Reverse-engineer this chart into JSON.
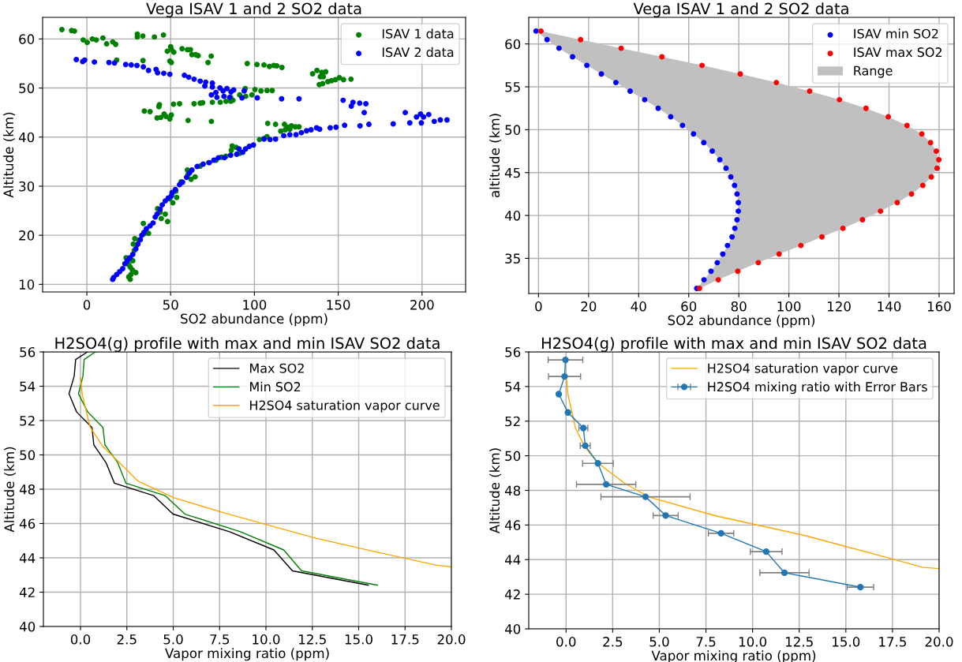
{
  "chart_data": [
    {
      "type": "scatter",
      "title": "Vega ISAV 1 and 2 SO2 data",
      "xlabel": "SO2 abundance (ppm)",
      "ylabel": "Altitude (km)",
      "xlim": [
        -26.4,
        226
      ],
      "ylim": [
        8.45,
        64.4
      ],
      "xticks": [
        0,
        50,
        100,
        150,
        200
      ],
      "yticks": [
        10,
        20,
        30,
        40,
        50,
        60
      ],
      "grid": true,
      "legend": "top right",
      "marker": "circle",
      "series": [
        {
          "name": "ISAV 1 data",
          "color": "#008000",
          "x": [
            -14.9,
            -9.1,
            -7.4,
            -2.2,
            0.2,
            3.3,
            5.6,
            9.6,
            11.8,
            15.4,
            17.2,
            17.8,
            30.1,
            30.1,
            33.4,
            40.3,
            45.7,
            33.5,
            50,
            50.4,
            48,
            51.9,
            56.8,
            60,
            61.8,
            62.7,
            64.9,
            66.4,
            74.2,
            72.3,
            49.5,
            50.4,
            95.7,
            101.5,
            105.7,
            108.9,
            111.5,
            113.3,
            116.4,
            134.7,
            137.3,
            140.2,
            142.5,
            139.3,
            141.1,
            138.7,
            140.7,
            143.8,
            146,
            148.3,
            150.7,
            153.2,
            157.6,
            94.5,
            100.3,
            103.9,
            107.5,
            110.6,
            91.2,
            98.5,
            94.8,
            85.8,
            87.2,
            83,
            79.6,
            85.8,
            74.9,
            69.1,
            67.6,
            64,
            55.3,
            51.7,
            43.3,
            43,
            34.3,
            37.7,
            41.9,
            44.1,
            46.1,
            47.3,
            50.4,
            49.5,
            60.4,
            74.3,
            107.9,
            112.6,
            117.9,
            119.9,
            122.1,
            124.4,
            126.6,
            115.7,
            118.4,
            121.1,
            107.5,
            103,
            105.7,
            86.7,
            89,
            86.2,
            91.2,
            83,
            80.3,
            77.1,
            72.7,
            67.6,
            60,
            60.4,
            64.6,
            62.2,
            56.2,
            53.1,
            50.9,
            53.6,
            49.5,
            51.3,
            42.2,
            43.7,
            46.8,
            44.4,
            48.2,
            33.7,
            36.8,
            34.1,
            28.6,
            31,
            27.7,
            29.9,
            28.3,
            23.4,
            26.3,
            27.4,
            25,
            25.9,
            27.2,
            29.2,
            26.3,
            25,
            25.9
          ],
          "values": [
            61.9,
            61.7,
            61.6,
            59.8,
            59.3,
            60,
            59.8,
            60.2,
            59,
            59.4,
            58.9,
            55.7,
            61,
            60.4,
            60.6,
            60.4,
            60.8,
            55.6,
            58.4,
            57.9,
            57.5,
            57.3,
            58,
            57.8,
            57.8,
            56.8,
            56.8,
            56.6,
            56.5,
            55.2,
            55.5,
            55.2,
            55,
            54.8,
            54.7,
            54.4,
            54.6,
            54.5,
            54.2,
            52.9,
            53.6,
            53.2,
            53.3,
            52.3,
            52.3,
            50.7,
            50.9,
            51.3,
            51.5,
            51.7,
            52.1,
            51.7,
            51.8,
            49.9,
            49.7,
            49.4,
            49.5,
            49.5,
            48.6,
            48.6,
            48.3,
            48.1,
            47.5,
            47.3,
            47.1,
            47.3,
            47.1,
            47,
            46.9,
            46.8,
            46.8,
            46.7,
            46.6,
            46.2,
            45.3,
            45.2,
            43.9,
            44,
            44.7,
            44.2,
            44.5,
            43.7,
            43.4,
            43.2,
            42.8,
            42.6,
            42.6,
            42,
            42.3,
            42.1,
            42.1,
            41.2,
            41.5,
            41.6,
            40.1,
            39.5,
            39.7,
            38.2,
            37.9,
            37.3,
            36.7,
            36.1,
            35.9,
            35.3,
            34.8,
            34.1,
            33.3,
            32.4,
            31.9,
            31.4,
            30.9,
            29,
            28.5,
            27.7,
            27.4,
            26.6,
            25.4,
            24.7,
            24.3,
            23.4,
            22.8,
            22.4,
            20.4,
            20.3,
            19.3,
            19,
            18.2,
            18,
            16.9,
            15.4,
            15.1,
            14.8,
            14,
            13.5,
            12.9,
            12.4,
            12,
            11.5,
            11
          ]
        },
        {
          "name": "ISAV 2 data",
          "color": "#0000ff",
          "x": [
            -6.3,
            -2.5,
            -1.3,
            4.5,
            13.2,
            16.5,
            23.2,
            26.5,
            29.9,
            33.7,
            36.8,
            41.3,
            42.2,
            45.9,
            49.5,
            58.2,
            60.8,
            64,
            67.6,
            70.9,
            74.9,
            70.4,
            74.9,
            79.4,
            83.6,
            87.6,
            93.9,
            77,
            81.3,
            86,
            74.3,
            77.6,
            81.8,
            85.2,
            92.6,
            101.7,
            116.2,
            126.6,
            152.9,
            158.8,
            157.8,
            162.8,
            166.5,
            165.5,
            190,
            196.7,
            199.1,
            200.9,
            204,
            199.6,
            192.7,
            207.3,
            210.9,
            214.9,
            182.8,
            168.3,
            163,
            153.8,
            148.7,
            145.2,
            138.9,
            137.1,
            133.8,
            131.1,
            128,
            124.8,
            121.1,
            117.5,
            112.6,
            109.3,
            105.7,
            99.4,
            96.9,
            94.7,
            90.8,
            93,
            89.4,
            85.8,
            82.1,
            78.5,
            75.8,
            73.1,
            69.4,
            65.8,
            62.7,
            61.3,
            59.5,
            57.1,
            55.3,
            52.8,
            50.9,
            50.4,
            48.6,
            46.8,
            45,
            43.7,
            41.9,
            40.8,
            39.5,
            37.7,
            35.5,
            34.1,
            32.8,
            31.9,
            30.5,
            29.2,
            27.4,
            25.6,
            24.1,
            22.7,
            21.4,
            19.6,
            17.8,
            16,
            15.4
          ],
          "values": [
            55.8,
            55.4,
            55.7,
            55.3,
            55.2,
            55.1,
            54.8,
            54.7,
            54.6,
            54.3,
            53.6,
            53.8,
            53.1,
            53,
            52.8,
            52.6,
            52.2,
            51.8,
            51.4,
            51.2,
            51,
            50.4,
            50.2,
            50,
            49.9,
            49.6,
            49.4,
            49.1,
            49.4,
            49.2,
            48.6,
            48.1,
            48.3,
            48.1,
            48,
            48,
            47.8,
            47.8,
            47.5,
            47.1,
            46.3,
            46.9,
            46.8,
            45,
            45,
            44.1,
            44.7,
            44.1,
            44.6,
            42.9,
            42.9,
            43.2,
            43.5,
            43.5,
            42.7,
            42.6,
            42.3,
            42.4,
            42,
            41.9,
            41.6,
            41.9,
            41.5,
            41.3,
            40.9,
            40.5,
            40.5,
            40.3,
            39.6,
            39.5,
            39.6,
            38.4,
            38.1,
            37.6,
            37.6,
            36.9,
            36.5,
            36.3,
            35.8,
            35.8,
            35.3,
            34.8,
            34.5,
            34,
            33.3,
            32.7,
            31.8,
            30.8,
            30.3,
            29.3,
            28.7,
            28,
            27.6,
            27,
            26.2,
            25.3,
            24.3,
            23.7,
            22.5,
            21.9,
            21.3,
            20.6,
            20,
            19.1,
            18.2,
            17.2,
            16.1,
            15.4,
            14.8,
            14.2,
            13.2,
            12.6,
            12,
            11.4,
            11
          ]
        }
      ]
    },
    {
      "type": "scatter",
      "orientation": "horizontal",
      "title": "Vega ISAV 1 and 2 SO2 data",
      "xlabel": "SO2 abundance (ppm)",
      "ylabel": "altitude (km)",
      "xlim": [
        -3.9,
        166
      ],
      "ylim": [
        30.9,
        63.1
      ],
      "xticks": [
        0,
        20,
        40,
        60,
        80,
        100,
        120,
        140,
        160
      ],
      "yticks": [
        35,
        40,
        45,
        50,
        55,
        60
      ],
      "grid": true,
      "legend": "top right",
      "marker": "circle",
      "series": [
        {
          "name": "Range",
          "type": "area",
          "marker": "none",
          "color": "#c0c0c0",
          "values": [
            null,
            null,
            null,
            null,
            null,
            null,
            null,
            null,
            null,
            null,
            null,
            null,
            null,
            null,
            null,
            null,
            null,
            null,
            null,
            null,
            null,
            null,
            null,
            null,
            null,
            null,
            null,
            null,
            null,
            null,
            null
          ],
          "x": [
            61.5,
            60.5,
            59.5,
            58.5,
            57.5,
            56.5,
            55.5,
            54.5,
            53.5,
            52.5,
            51.5,
            50.5,
            49.5,
            48.5,
            47.5,
            46.5,
            45.5,
            44.5,
            43.5,
            42.5,
            41.5,
            40.5,
            39.5,
            38.5,
            37.5,
            36.5,
            35.5,
            34.5,
            33.5,
            32.5,
            31.5
          ],
          "lower": [
            -1,
            3.4,
            8.2,
            13.6,
            19.3,
            25.1,
            30.9,
            36.6,
            42.4,
            47.8,
            52.8,
            57.5,
            61.9,
            66,
            69.4,
            72.4,
            74.9,
            76.8,
            78.3,
            79.3,
            79.8,
            79.8,
            79.3,
            78.4,
            77.3,
            75.5,
            73.6,
            71.4,
            68.9,
            66.1,
            63.2
          ],
          "upper": [
            1,
            16.8,
            33,
            49.3,
            65.3,
            80.6,
            95,
            108.3,
            120.2,
            130.8,
            139.7,
            147.2,
            153.1,
            156.6,
            158.9,
            159.9,
            159.2,
            156.9,
            153.5,
            149,
            143.3,
            136.6,
            129.4,
            121.6,
            113.2,
            104.8,
            96.1,
            87.8,
            79.6,
            71.8,
            64.3
          ]
        },
        {
          "name": "ISAV min SO2",
          "color": "#0000ff",
          "values": [
            -1,
            3.4,
            8.2,
            13.6,
            19.3,
            25.1,
            30.9,
            36.6,
            42.4,
            47.8,
            52.8,
            57.5,
            61.9,
            66,
            69.4,
            72.4,
            74.9,
            76.8,
            78.3,
            79.3,
            79.8,
            79.8,
            79.3,
            78.4,
            77.3,
            75.5,
            73.6,
            71.4,
            68.9,
            66.1,
            63.2
          ],
          "x": [
            61.5,
            60.5,
            59.5,
            58.5,
            57.5,
            56.5,
            55.5,
            54.5,
            53.5,
            52.5,
            51.5,
            50.5,
            49.5,
            48.5,
            47.5,
            46.5,
            45.5,
            44.5,
            43.5,
            42.5,
            41.5,
            40.5,
            39.5,
            38.5,
            37.5,
            36.5,
            35.5,
            34.5,
            33.5,
            32.5,
            31.5
          ]
        },
        {
          "name": "ISAV max SO2",
          "color": "#ff0000",
          "values": [
            1,
            16.8,
            33,
            49.3,
            65.3,
            80.6,
            95,
            108.3,
            120.2,
            130.8,
            139.7,
            147.2,
            153.1,
            156.6,
            158.9,
            159.9,
            159.2,
            156.9,
            153.5,
            149,
            143.3,
            136.6,
            129.4,
            121.6,
            113.2,
            104.8,
            96.1,
            87.8,
            79.6,
            71.8,
            64.3
          ],
          "x": [
            61.5,
            60.5,
            59.5,
            58.5,
            57.5,
            56.5,
            55.5,
            54.5,
            53.5,
            52.5,
            51.5,
            50.5,
            49.5,
            48.5,
            47.5,
            46.5,
            45.5,
            44.5,
            43.5,
            42.5,
            41.5,
            40.5,
            39.5,
            38.5,
            37.5,
            36.5,
            35.5,
            34.5,
            33.5,
            32.5,
            31.5
          ]
        }
      ]
    },
    {
      "type": "line",
      "title": "H2SO4(g) profile with max and min ISAV SO2 data",
      "xlabel": "Vapor mixing ratio (ppm)",
      "ylabel": "Altitude (km)",
      "xlim": [
        -2,
        20
      ],
      "ylim": [
        40,
        56
      ],
      "xticks": [
        {
          "value": 0,
          "label": "0.0"
        },
        {
          "value": 2.5,
          "label": "2.5"
        },
        {
          "value": 5,
          "label": "5.0"
        },
        {
          "value": 7.5,
          "label": "7.5"
        },
        {
          "value": 10,
          "label": "10.0"
        },
        {
          "value": 12.5,
          "label": "12.5"
        },
        {
          "value": 15,
          "label": "15.0"
        },
        {
          "value": 17.5,
          "label": "17.5"
        },
        {
          "value": 20,
          "label": "20.0"
        }
      ],
      "yticks": [
        40,
        42,
        44,
        46,
        48,
        50,
        52,
        54,
        56
      ],
      "grid": true,
      "legend": "top right",
      "series": [
        {
          "name": "Max SO2",
          "color": "#000000",
          "x": [
            0.38,
            -0.26,
            -0.34,
            -0.62,
            -0.21,
            0.62,
            0.72,
            1.37,
            1.83,
            3.94,
            4.99,
            8.03,
            10.43,
            11.43,
            15.52
          ],
          "values": [
            56,
            55.56,
            54.58,
            53.56,
            52.5,
            51.6,
            50.58,
            49.56,
            48.35,
            47.63,
            46.55,
            45.52,
            44.46,
            43.24,
            42.41
          ]
        },
        {
          "name": "Min SO2",
          "color": "#008000",
          "x": [
            0.8,
            0.2,
            0.13,
            -0.11,
            0.39,
            1.21,
            1.32,
            2.0,
            2.45,
            4.56,
            5.63,
            8.62,
            10.96,
            11.92,
            16.01
          ],
          "values": [
            56,
            55.56,
            54.58,
            53.56,
            52.5,
            51.6,
            50.58,
            49.56,
            48.35,
            47.63,
            46.55,
            45.52,
            44.46,
            43.24,
            42.41
          ]
        },
        {
          "name": "H2SO4 saturation vapor curve",
          "color": "#ffa500",
          "x": [
            0,
            0.1,
            0.52,
            1.21,
            2.22,
            3.09,
            5.04,
            7.87,
            12.61,
            15.63,
            19.15,
            20
          ],
          "values": [
            54.51,
            53.49,
            51.61,
            50.48,
            49.42,
            48.48,
            47.5,
            46.58,
            45.17,
            44.42,
            43.58,
            43.47
          ]
        }
      ]
    },
    {
      "type": "line",
      "title": "H2SO4(g) profile with max and min ISAV SO2 data",
      "xlabel": "Vapor mixing ratio (ppm)",
      "ylabel": "Altitude (km)",
      "xlim": [
        -2,
        20
      ],
      "ylim": [
        40,
        56
      ],
      "xticks": [
        {
          "value": 0,
          "label": "0.0"
        },
        {
          "value": 2.5,
          "label": "2.5"
        },
        {
          "value": 5,
          "label": "5.0"
        },
        {
          "value": 7.5,
          "label": "7.5"
        },
        {
          "value": 10,
          "label": "10.0"
        },
        {
          "value": 12.5,
          "label": "12.5"
        },
        {
          "value": 15,
          "label": "15.0"
        },
        {
          "value": 17.5,
          "label": "17.5"
        },
        {
          "value": 20,
          "label": "20.0"
        }
      ],
      "yticks": [
        40,
        42,
        44,
        46,
        48,
        50,
        52,
        54,
        56
      ],
      "grid": true,
      "legend": "top right",
      "series": [
        {
          "name": "H2SO4 saturation vapor curve",
          "color": "#ffa500",
          "x": [
            0.02,
            0.1,
            0.51,
            1.01,
            1.74,
            3.14,
            4.44,
            8.02,
            12.85,
            17.53,
            19.14,
            20
          ],
          "values": [
            54.5,
            53.55,
            51.58,
            50.5,
            49.55,
            48.41,
            47.62,
            46.53,
            45.38,
            44.03,
            43.55,
            43.48
          ]
        },
        {
          "name": "H2SO4 mixing ratio with Error Bars",
          "color": "#1f77b4",
          "marker": "circle",
          "x": [
            -0.03,
            -0.08,
            -0.39,
            0.1,
            0.93,
            1.03,
            1.71,
            2.15,
            4.26,
            5.34,
            8.31,
            10.73,
            11.71,
            15.78
          ],
          "values": [
            55.54,
            54.58,
            53.56,
            52.5,
            51.6,
            50.58,
            49.56,
            48.35,
            47.63,
            46.55,
            45.52,
            44.46,
            43.24,
            42.41
          ],
          "xerrors": [
            0.93,
            0.86,
            null,
            null,
            0.24,
            0.27,
            0.82,
            1.59,
            2.39,
            0.67,
            0.68,
            0.85,
            1.32,
            0.71
          ]
        }
      ]
    }
  ]
}
